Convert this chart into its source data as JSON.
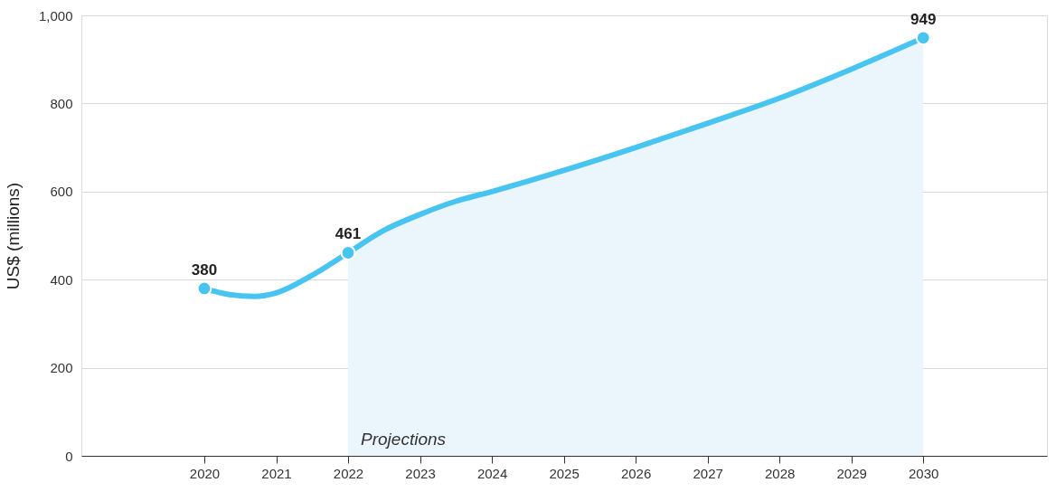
{
  "chart_data": {
    "type": "line",
    "ylabel": "US$ (millions)",
    "xlim": [
      2018.29,
      2031.72
    ],
    "xticks": [
      2020,
      2021,
      2022,
      2023,
      2024,
      2025,
      2026,
      2027,
      2028,
      2029,
      2030
    ],
    "ylim": [
      0,
      1000
    ],
    "yticks": [
      0,
      200,
      400,
      600,
      800,
      {
        "value": 1000,
        "label": "1,000"
      }
    ],
    "grid": "y",
    "series": [
      {
        "type": "area",
        "color": "#eaf5fc",
        "x": [
          2022,
          2022.5,
          2023,
          2023.5,
          2024,
          2025,
          2026,
          2027,
          2028,
          2029,
          2030
        ],
        "values": [
          461,
          512,
          548,
          578,
          600,
          648,
          700,
          755,
          812,
          878,
          949
        ]
      },
      {
        "color": "#48c4f0",
        "line_style": "solid",
        "x": [
          2020,
          2020.35,
          2020.7,
          2021,
          2021.5,
          2022,
          2022.5,
          2023,
          2023.5,
          2024,
          2025,
          2026,
          2027,
          2028,
          2029,
          2030
        ],
        "values": [
          380,
          366,
          362,
          370,
          410,
          461,
          512,
          548,
          578,
          600,
          648,
          700,
          755,
          812,
          878,
          949
        ]
      },
      {
        "type": "scatter",
        "color": "#48c4f0",
        "marker": "circle",
        "x": [
          2020,
          2022,
          2030
        ],
        "values": [
          380,
          461,
          949
        ],
        "value_labels": [
          "380",
          "461",
          "949"
        ]
      }
    ],
    "annotations": [
      {
        "text": "Projections",
        "x": 2022,
        "y": 0
      }
    ]
  }
}
